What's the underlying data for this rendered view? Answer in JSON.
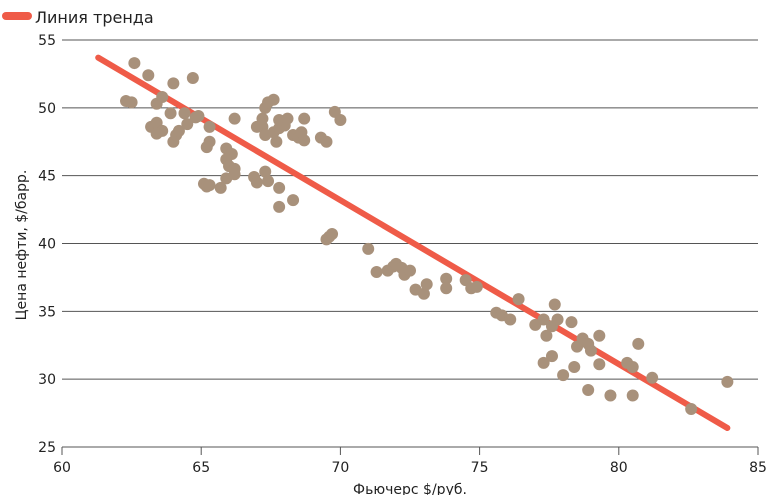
{
  "chart_data": {
    "type": "scatter",
    "xlabel": "Фьючерс $/руб.",
    "ylabel": "Цена нефти, $/барр.",
    "xlim": [
      60,
      85
    ],
    "ylim": [
      25,
      55
    ],
    "x_ticks": [
      60,
      65,
      70,
      75,
      80,
      85
    ],
    "y_ticks": [
      25,
      30,
      35,
      40,
      45,
      50,
      55
    ],
    "grid": "horizontal",
    "legend": {
      "position": "top-left",
      "entries": [
        {
          "label": "Линия тренда",
          "color": "#ef5b48"
        }
      ]
    },
    "point_color": "#a8917b",
    "trend_color": "#ef5b48",
    "trend_line": {
      "x": [
        61.3,
        83.9
      ],
      "y": [
        53.7,
        26.4
      ]
    },
    "points": [
      [
        62.3,
        50.5
      ],
      [
        62.5,
        50.4
      ],
      [
        62.6,
        53.3
      ],
      [
        63.1,
        52.4
      ],
      [
        63.4,
        50.3
      ],
      [
        63.6,
        50.8
      ],
      [
        64.0,
        51.8
      ],
      [
        64.7,
        52.2
      ],
      [
        63.2,
        48.6
      ],
      [
        63.4,
        48.9
      ],
      [
        63.6,
        48.3
      ],
      [
        63.4,
        48.1
      ],
      [
        64.0,
        47.5
      ],
      [
        64.1,
        48.0
      ],
      [
        64.2,
        48.3
      ],
      [
        63.9,
        49.6
      ],
      [
        64.4,
        49.6
      ],
      [
        64.8,
        49.3
      ],
      [
        64.5,
        48.8
      ],
      [
        64.9,
        49.4
      ],
      [
        65.3,
        48.6
      ],
      [
        65.3,
        47.5
      ],
      [
        65.2,
        47.1
      ],
      [
        65.9,
        47.0
      ],
      [
        66.1,
        46.6
      ],
      [
        65.9,
        46.2
      ],
      [
        66.0,
        45.7
      ],
      [
        66.2,
        45.5
      ],
      [
        65.9,
        44.8
      ],
      [
        65.1,
        44.4
      ],
      [
        65.2,
        44.2
      ],
      [
        65.3,
        44.3
      ],
      [
        65.7,
        44.1
      ],
      [
        66.2,
        45.1
      ],
      [
        66.2,
        49.2
      ],
      [
        66.9,
        44.9
      ],
      [
        67.0,
        44.5
      ],
      [
        67.3,
        45.3
      ],
      [
        67.4,
        44.6
      ],
      [
        67.8,
        44.1
      ],
      [
        67.8,
        42.7
      ],
      [
        68.3,
        43.2
      ],
      [
        67.2,
        48.6
      ],
      [
        67.3,
        48.0
      ],
      [
        67.6,
        48.2
      ],
      [
        67.7,
        47.5
      ],
      [
        67.8,
        48.5
      ],
      [
        68.0,
        48.7
      ],
      [
        67.8,
        49.1
      ],
      [
        68.1,
        49.2
      ],
      [
        68.3,
        48.0
      ],
      [
        68.5,
        47.8
      ],
      [
        68.6,
        48.2
      ],
      [
        68.7,
        47.6
      ],
      [
        67.0,
        48.6
      ],
      [
        67.3,
        50.0
      ],
      [
        67.4,
        50.4
      ],
      [
        67.6,
        50.6
      ],
      [
        67.2,
        49.2
      ],
      [
        68.7,
        49.2
      ],
      [
        69.3,
        47.8
      ],
      [
        69.5,
        47.5
      ],
      [
        69.8,
        49.7
      ],
      [
        70.0,
        49.1
      ],
      [
        69.5,
        40.3
      ],
      [
        69.6,
        40.5
      ],
      [
        69.7,
        40.7
      ],
      [
        71.0,
        39.6
      ],
      [
        71.3,
        37.9
      ],
      [
        71.7,
        38.0
      ],
      [
        71.9,
        38.3
      ],
      [
        72.0,
        38.5
      ],
      [
        72.2,
        38.2
      ],
      [
        72.3,
        37.7
      ],
      [
        72.5,
        38.0
      ],
      [
        72.7,
        36.6
      ],
      [
        73.0,
        36.3
      ],
      [
        73.1,
        37.0
      ],
      [
        73.8,
        37.4
      ],
      [
        73.8,
        36.7
      ],
      [
        74.5,
        37.3
      ],
      [
        74.7,
        36.7
      ],
      [
        74.9,
        36.8
      ],
      [
        75.6,
        34.9
      ],
      [
        75.8,
        34.7
      ],
      [
        76.1,
        34.4
      ],
      [
        76.4,
        35.9
      ],
      [
        77.0,
        34.0
      ],
      [
        77.3,
        34.4
      ],
      [
        77.4,
        33.2
      ],
      [
        77.6,
        33.9
      ],
      [
        77.8,
        34.4
      ],
      [
        77.7,
        35.5
      ],
      [
        78.3,
        34.2
      ],
      [
        77.3,
        31.2
      ],
      [
        77.6,
        31.7
      ],
      [
        78.0,
        30.3
      ],
      [
        78.4,
        30.9
      ],
      [
        78.5,
        32.4
      ],
      [
        78.7,
        33.0
      ],
      [
        78.9,
        32.6
      ],
      [
        79.0,
        32.1
      ],
      [
        79.3,
        33.2
      ],
      [
        79.3,
        31.1
      ],
      [
        78.9,
        29.2
      ],
      [
        79.7,
        28.8
      ],
      [
        80.3,
        31.2
      ],
      [
        80.5,
        30.9
      ],
      [
        80.7,
        32.6
      ],
      [
        80.5,
        28.8
      ],
      [
        81.2,
        30.1
      ],
      [
        82.6,
        27.8
      ],
      [
        83.9,
        29.8
      ]
    ]
  }
}
